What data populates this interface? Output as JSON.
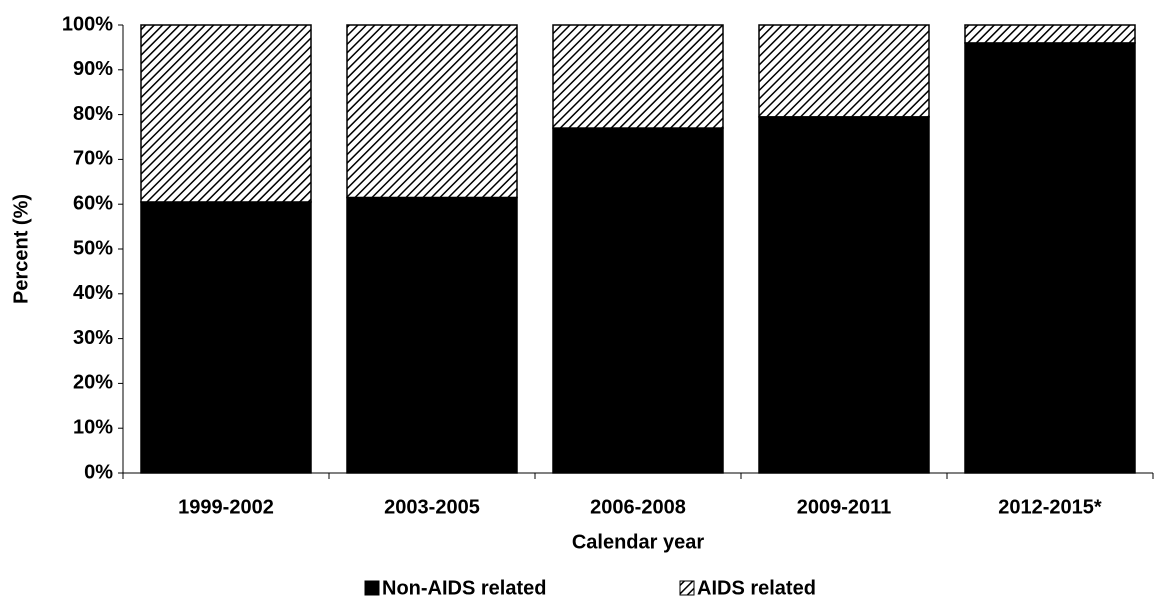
{
  "chart_data": {
    "type": "stacked-bar",
    "x_label": "Calendar year",
    "y_label": "Percent (%)",
    "categories": [
      "1999-2002",
      "2003-2005",
      "2006-2008",
      "2009-2011",
      "2012-2015*"
    ],
    "series": [
      {
        "name": "Non-AIDS related",
        "color": "#000000",
        "values": [
          60.5,
          61.5,
          77,
          79.5,
          96
        ]
      },
      {
        "name": "AIDS related",
        "color": "#000000",
        "pattern": "diagonal-hatch",
        "values": [
          39.5,
          38.5,
          23,
          20.5,
          4
        ]
      }
    ],
    "ylim": [
      0,
      100
    ],
    "yticks": [
      {
        "value": 0,
        "label": "0%"
      },
      {
        "value": 10,
        "label": "10%"
      },
      {
        "value": 20,
        "label": "20%"
      },
      {
        "value": 30,
        "label": "30%"
      },
      {
        "value": 40,
        "label": "40%"
      },
      {
        "value": 50,
        "label": "50%"
      },
      {
        "value": 60,
        "label": "60%"
      },
      {
        "value": 70,
        "label": "70%"
      },
      {
        "value": 80,
        "label": "80%"
      },
      {
        "value": 90,
        "label": "90%"
      },
      {
        "value": 100,
        "label": "100%"
      }
    ],
    "legend": "bottom"
  }
}
